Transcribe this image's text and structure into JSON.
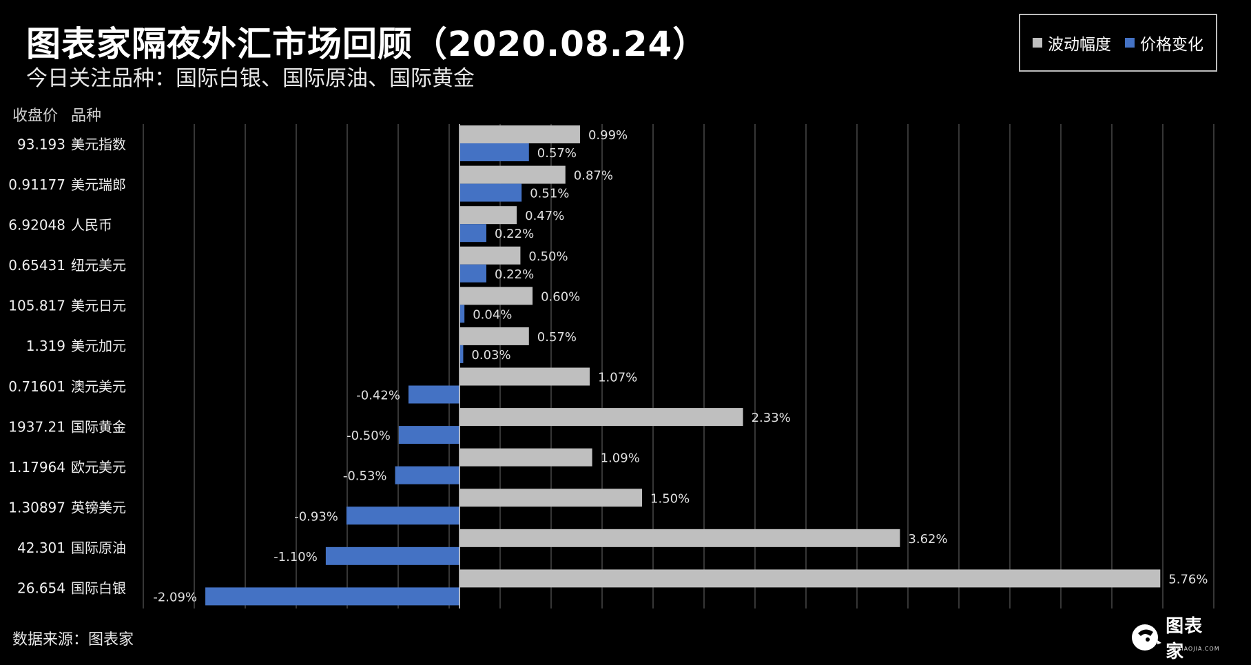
{
  "title": "图表家隔夜外汇市场回顾（2020.08.24）",
  "subtitle": "今日关注品种：国际白银、国际原油、国际黄金",
  "headers": {
    "close": "收盘价",
    "variety": "品种"
  },
  "legend": {
    "series1": "波动幅度",
    "series2": "价格变化"
  },
  "source": "数据来源：图表家",
  "logo": {
    "text": "图表家",
    "sub": "TUBIAOJIA.COM"
  },
  "colors": {
    "volatility": "#bfbfbf",
    "change": "#4472c4",
    "background": "#000000"
  },
  "chart_data": {
    "type": "bar",
    "orientation": "horizontal",
    "categories": [
      "美元指数",
      "美元瑞郎",
      "人民币",
      "纽元美元",
      "美元日元",
      "美元加元",
      "澳元美元",
      "国际黄金",
      "欧元美元",
      "英镑美元",
      "国际原油",
      "国际白银"
    ],
    "close_prices": [
      "93.193",
      "0.91177",
      "6.92048",
      "0.65431",
      "105.817",
      "1.319",
      "0.71601",
      "1937.21",
      "1.17964",
      "1.30897",
      "42.301",
      "26.654"
    ],
    "series": [
      {
        "name": "波动幅度",
        "values": [
          0.99,
          0.87,
          0.47,
          0.5,
          0.6,
          0.57,
          1.07,
          2.33,
          1.09,
          1.5,
          3.62,
          5.76
        ],
        "labels": [
          "0.99%",
          "0.87%",
          "0.47%",
          "0.50%",
          "0.60%",
          "0.57%",
          "1.07%",
          "2.33%",
          "1.09%",
          "1.50%",
          "3.62%",
          "5.76%"
        ]
      },
      {
        "name": "价格变化",
        "values": [
          0.57,
          0.51,
          0.22,
          0.22,
          0.04,
          0.03,
          -0.42,
          -0.5,
          -0.53,
          -0.93,
          -1.1,
          -2.09
        ],
        "labels": [
          "0.57%",
          "0.51%",
          "0.22%",
          "0.22%",
          "0.04%",
          "0.03%",
          "-0.42%",
          "-0.50%",
          "-0.53%",
          "-0.93%",
          "-1.10%",
          "-2.09%"
        ]
      }
    ],
    "xlim": [
      -2.6,
      6.2
    ],
    "grid": true
  }
}
